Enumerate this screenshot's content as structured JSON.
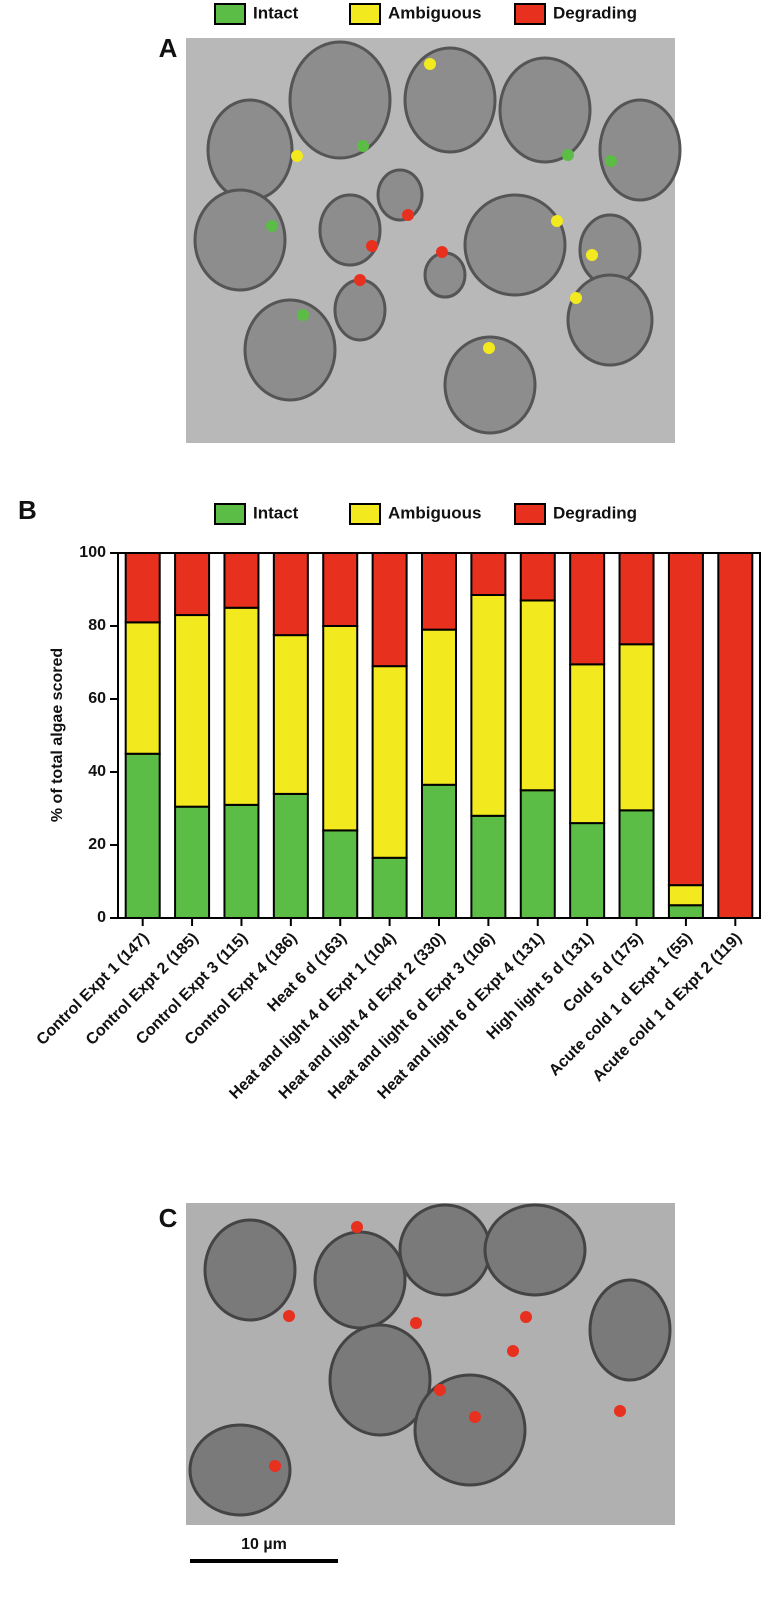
{
  "panel_a": {
    "label": "A",
    "legend": [
      {
        "name": "Intact",
        "color": "#5bbd45"
      },
      {
        "name": "Ambiguous",
        "color": "#f2ea1e"
      },
      {
        "name": "Degrading",
        "color": "#e8301f"
      }
    ]
  },
  "panel_b": {
    "label": "B"
  },
  "panel_c": {
    "label": "C",
    "scale_bar": "10 µm"
  },
  "chart_data": {
    "type": "stacked_bar",
    "ylabel": "% of total algae scored",
    "categories": [
      "Control Expt 1 (147)",
      "Control Expt 2 (185)",
      "Control Expt 3 (115)",
      "Control Expt 4 (186)",
      "Heat 6 d (163)",
      "Heat and light 4 d Expt 1 (104)",
      "Heat and light 4 d Expt 2 (330)",
      "Heat and light 6 d Expt 3 (106)",
      "Heat and light 6 d Expt 4 (131)",
      "High light 5 d (131)",
      "Cold 5 d (175)",
      "Acute cold 1 d Expt 1 (55)",
      "Acute cold 1 d Expt  2 (119)"
    ],
    "series": [
      {
        "name": "Intact",
        "color": "#5bbd45",
        "values": [
          45,
          30.5,
          31,
          34,
          24,
          16.5,
          36.5,
          28,
          35,
          26,
          29.5,
          3.5,
          0
        ]
      },
      {
        "name": "Ambiguous",
        "color": "#f2ea1e",
        "values": [
          36,
          52.5,
          54,
          43.5,
          56,
          52.5,
          42.5,
          60.5,
          52,
          43.5,
          45.5,
          5.5,
          0
        ]
      },
      {
        "name": "Degrading",
        "color": "#e8301f",
        "values": [
          19,
          17,
          15,
          22.5,
          20,
          31,
          21,
          11.5,
          13,
          30.5,
          25,
          91,
          100
        ]
      }
    ],
    "ylim": [
      0,
      100
    ],
    "yticks": [
      0,
      20,
      40,
      60,
      80,
      100
    ]
  }
}
